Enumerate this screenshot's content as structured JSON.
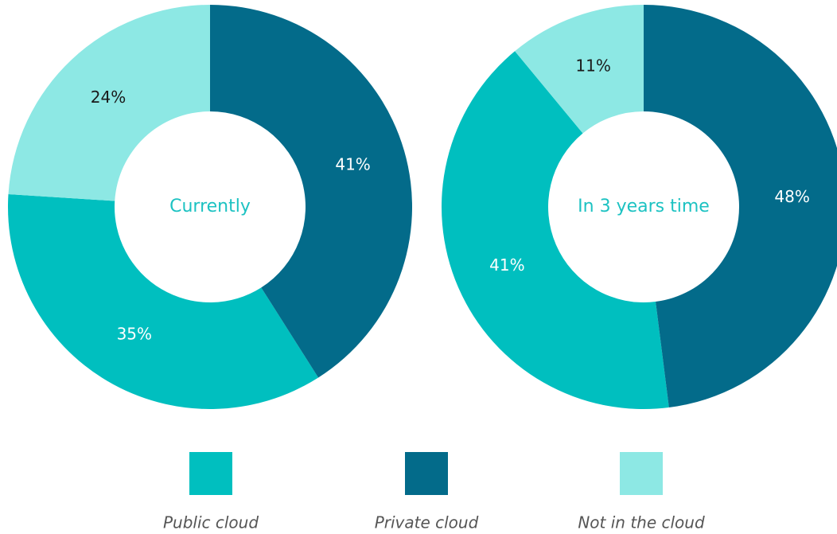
{
  "chart_data": [
    {
      "type": "pie",
      "title": "Currently",
      "values": [
        35,
        41,
        24
      ],
      "value_labels": [
        "35%",
        "41%",
        "24%"
      ]
    },
    {
      "type": "pie",
      "title": "In 3 years time",
      "values": [
        41,
        48,
        11
      ],
      "value_labels": [
        "41%",
        "48%",
        "11%"
      ]
    }
  ],
  "legend": {
    "labels": [
      "Public cloud",
      "Private cloud",
      "Not in the cloud"
    ],
    "colors": [
      "#00bfbf",
      "#036b8a",
      "#8de8e4"
    ],
    "text_colors": [
      "#ffffff",
      "#ffffff",
      "#1a1a1a"
    ]
  }
}
